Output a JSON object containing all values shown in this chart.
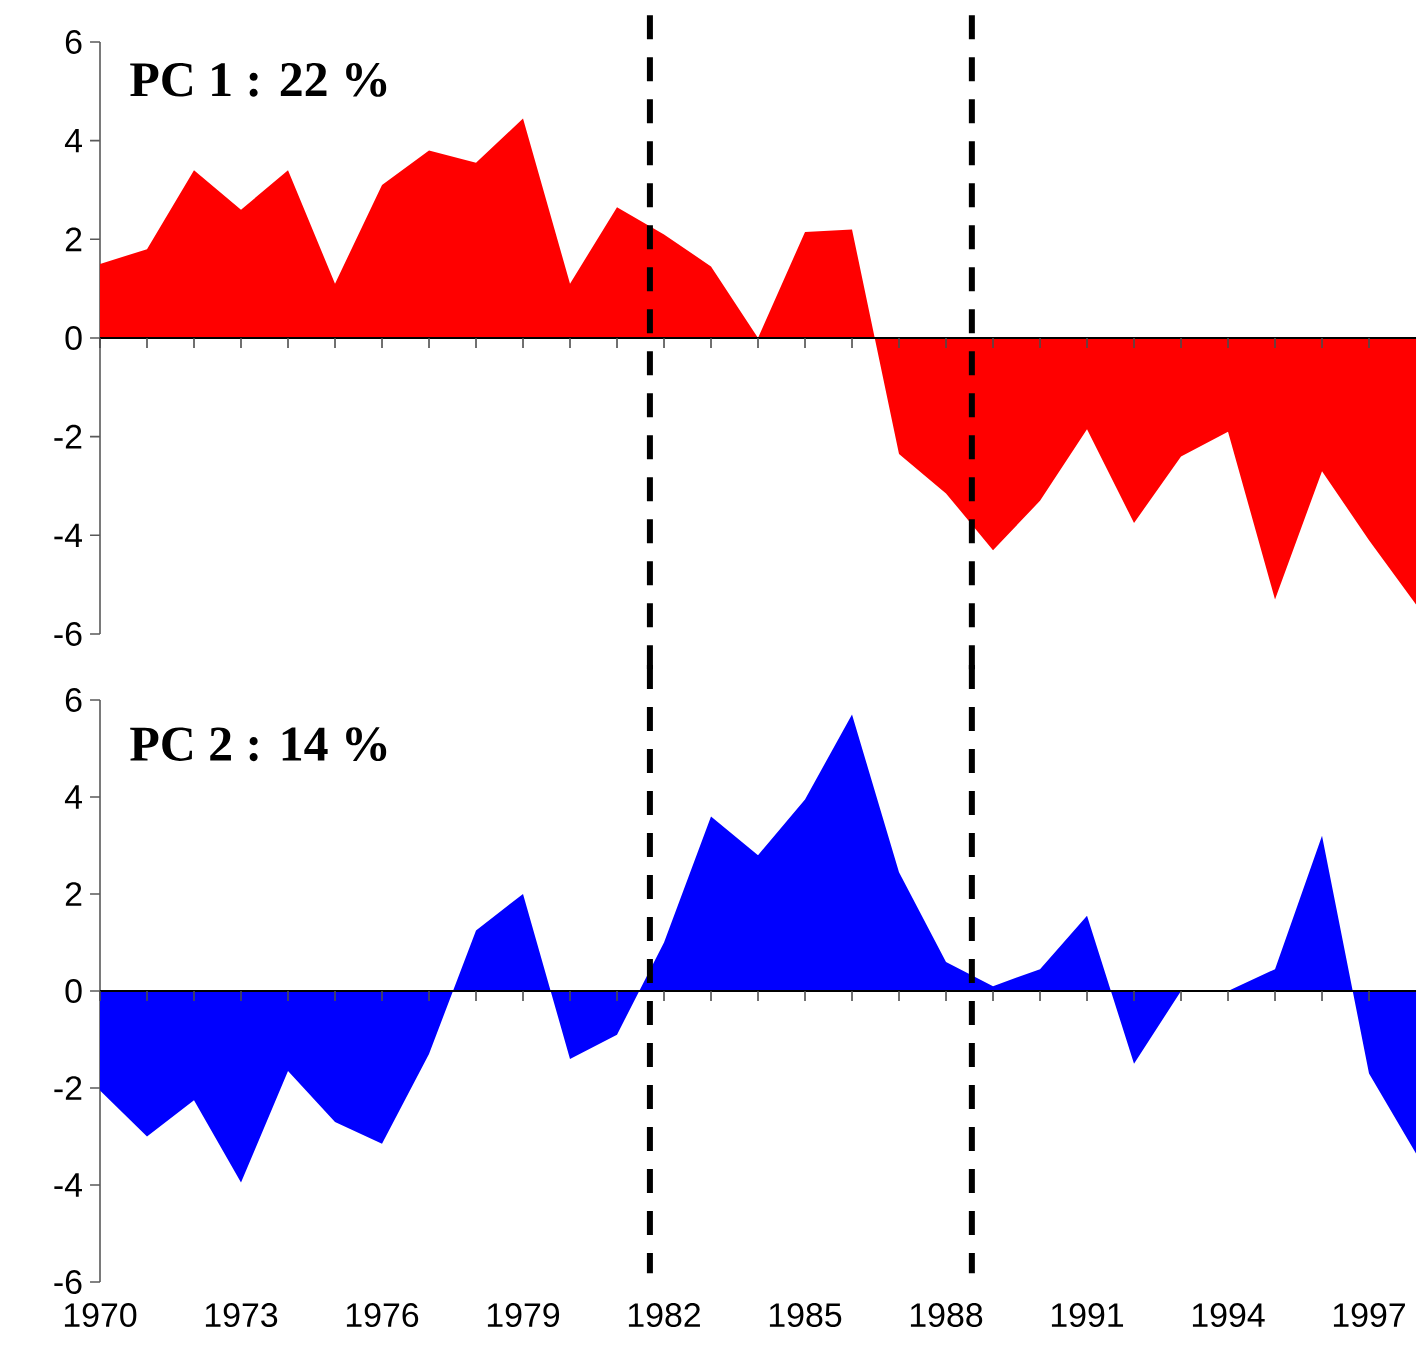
{
  "chart_data": [
    {
      "type": "area",
      "title": "PC 1 : 22 %",
      "x": [
        1970,
        1971,
        1972,
        1973,
        1974,
        1975,
        1976,
        1977,
        1978,
        1979,
        1980,
        1981,
        1982,
        1983,
        1984,
        1985,
        1986,
        1987,
        1988,
        1989,
        1990,
        1991,
        1992,
        1993,
        1994,
        1995,
        1996,
        1997,
        1998
      ],
      "values": [
        1.5,
        1.8,
        3.4,
        2.6,
        3.4,
        1.1,
        3.1,
        3.8,
        3.55,
        4.45,
        1.1,
        2.65,
        2.1,
        1.45,
        0,
        2.15,
        2.2,
        -2.35,
        -3.15,
        -4.3,
        -3.3,
        -1.85,
        -3.75,
        -2.4,
        -1.9,
        -5.3,
        -2.7,
        -4.1,
        -5.4
      ],
      "color": "#ff0000",
      "xlim": [
        1970,
        1998
      ],
      "ylim": [
        -6,
        6
      ],
      "yticks": [
        -6,
        -4,
        -2,
        0,
        2,
        4,
        6
      ],
      "xticks": [
        1970,
        {
          "value": 1971,
          "label": null
        },
        {
          "value": 1972,
          "label": null
        },
        1973,
        {
          "value": 1974,
          "label": null
        },
        {
          "value": 1975,
          "label": null
        },
        1976,
        {
          "value": 1977,
          "label": null
        },
        {
          "value": 1978,
          "label": null
        },
        1979,
        {
          "value": 1980,
          "label": null
        },
        {
          "value": 1981,
          "label": null
        },
        1982,
        {
          "value": 1983,
          "label": null
        },
        {
          "value": 1984,
          "label": null
        },
        1985,
        {
          "value": 1986,
          "label": null
        },
        {
          "value": 1987,
          "label": null
        },
        1988,
        {
          "value": 1989,
          "label": null
        },
        {
          "value": 1990,
          "label": null
        },
        1991,
        {
          "value": 1992,
          "label": null
        },
        {
          "value": 1993,
          "label": null
        },
        1994,
        {
          "value": 1995,
          "label": null
        },
        {
          "value": 1996,
          "label": null
        },
        1997
      ],
      "tick_labels": "y",
      "ref_lines": [
        {
          "axis": "x",
          "value": 1981.7,
          "line_style": "dashed"
        },
        {
          "axis": "x",
          "value": 1988.55,
          "line_style": "dashed"
        }
      ]
    },
    {
      "type": "area",
      "title": "PC 2 : 14 %",
      "x": [
        1970,
        1971,
        1972,
        1973,
        1974,
        1975,
        1976,
        1977,
        1978,
        1979,
        1980,
        1981,
        1982,
        1983,
        1984,
        1985,
        1986,
        1987,
        1988,
        1989,
        1990,
        1991,
        1992,
        1993,
        1994,
        1995,
        1996,
        1997,
        1998
      ],
      "values": [
        -2.05,
        -3.0,
        -2.25,
        -3.95,
        -1.65,
        -2.7,
        -3.15,
        -1.3,
        1.25,
        2.0,
        -1.4,
        -0.9,
        1.0,
        3.6,
        2.8,
        3.95,
        5.7,
        2.45,
        0.6,
        0.1,
        0.45,
        1.55,
        -1.5,
        0,
        0,
        0.45,
        3.2,
        -1.7,
        -3.35
      ],
      "color": "#0000ff",
      "xlim": [
        1970,
        1998
      ],
      "ylim": [
        -6,
        6
      ],
      "yticks": [
        -6,
        -4,
        -2,
        0,
        2,
        4,
        6
      ],
      "xticks": [
        1970,
        {
          "value": 1971,
          "label": null
        },
        {
          "value": 1972,
          "label": null
        },
        1973,
        {
          "value": 1974,
          "label": null
        },
        {
          "value": 1975,
          "label": null
        },
        1976,
        {
          "value": 1977,
          "label": null
        },
        {
          "value": 1978,
          "label": null
        },
        1979,
        {
          "value": 1980,
          "label": null
        },
        {
          "value": 1981,
          "label": null
        },
        1982,
        {
          "value": 1983,
          "label": null
        },
        {
          "value": 1984,
          "label": null
        },
        1985,
        {
          "value": 1986,
          "label": null
        },
        {
          "value": 1987,
          "label": null
        },
        1988,
        {
          "value": 1989,
          "label": null
        },
        {
          "value": 1990,
          "label": null
        },
        1991,
        {
          "value": 1992,
          "label": null
        },
        {
          "value": 1993,
          "label": null
        },
        1994,
        {
          "value": 1995,
          "label": null
        },
        {
          "value": 1996,
          "label": null
        },
        1997
      ],
      "ref_lines": [
        {
          "axis": "x",
          "value": 1981.7,
          "line_style": "dashed"
        },
        {
          "axis": "x",
          "value": 1988.55,
          "line_style": "dashed"
        }
      ]
    }
  ]
}
